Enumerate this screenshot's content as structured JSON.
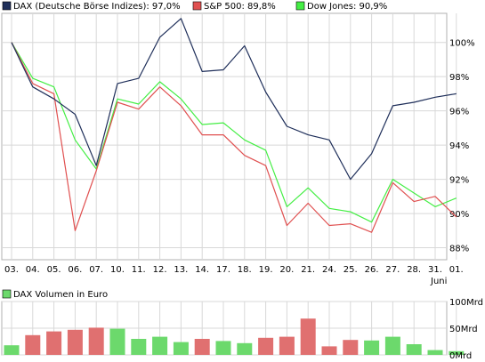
{
  "legend": {
    "dax": {
      "label": "DAX (Deutsche Börse Indizes): 97,0%",
      "color": "#1f2f5a"
    },
    "sp500": {
      "label": "S&P 500: 89,8%",
      "color": "#e05050"
    },
    "dow": {
      "label": "Dow Jones: 90,9%",
      "color": "#44ee44"
    }
  },
  "volume_legend": {
    "label": "DAX Volumen in Euro",
    "color": "#6cd96c"
  },
  "chart_data": [
    {
      "type": "line",
      "categories": [
        "03.",
        "04.",
        "05.",
        "06.",
        "07.",
        "10.",
        "11.",
        "12.",
        "13.",
        "14.",
        "17.",
        "18.",
        "19.",
        "20.",
        "21.",
        "24.",
        "25.",
        "26.",
        "27.",
        "28.",
        "31.",
        "01."
      ],
      "month_label": "Juni",
      "y_ticks": [
        "88%",
        "90%",
        "92%",
        "94%",
        "96%",
        "98%",
        "100%"
      ],
      "ylim": [
        87.3,
        101.7
      ],
      "grid": true,
      "series": [
        {
          "name": "DAX (Deutsche Börse Indizes): 97,0%",
          "color": "#1f2f5a",
          "values": [
            100.0,
            97.4,
            96.7,
            95.8,
            92.8,
            97.6,
            97.9,
            100.3,
            101.4,
            98.3,
            98.4,
            99.8,
            97.1,
            95.1,
            94.6,
            94.3,
            92.0,
            93.5,
            96.3,
            96.5,
            96.8,
            97.0
          ]
        },
        {
          "name": "S&P 500: 89,8%",
          "color": "#e05050",
          "values": [
            100.0,
            97.6,
            97.0,
            89.0,
            92.5,
            96.5,
            96.1,
            97.4,
            96.3,
            94.6,
            94.6,
            93.4,
            92.8,
            89.3,
            90.6,
            89.3,
            89.4,
            88.9,
            91.8,
            90.7,
            91.0,
            89.8
          ]
        },
        {
          "name": "Dow Jones: 90,9%",
          "color": "#44ee44",
          "values": [
            100.0,
            97.9,
            97.4,
            94.3,
            92.6,
            96.7,
            96.4,
            97.7,
            96.7,
            95.2,
            95.3,
            94.3,
            93.7,
            90.4,
            91.5,
            90.3,
            90.1,
            89.5,
            92.0,
            91.2,
            90.4,
            90.9
          ]
        }
      ]
    },
    {
      "type": "bar",
      "title": "DAX Volumen in Euro",
      "y_ticks": [
        "0Mrd",
        "50Mrd",
        "100Mrd"
      ],
      "ylim": [
        0,
        100
      ],
      "grid": true,
      "bars": [
        {
          "value": 18,
          "color": "#6cd96c"
        },
        {
          "value": 37,
          "color": "#e07070"
        },
        {
          "value": 44,
          "color": "#e07070"
        },
        {
          "value": 47,
          "color": "#e07070"
        },
        {
          "value": 51,
          "color": "#e07070"
        },
        {
          "value": 49,
          "color": "#6cd96c"
        },
        {
          "value": 30,
          "color": "#6cd96c"
        },
        {
          "value": 34,
          "color": "#6cd96c"
        },
        {
          "value": 24,
          "color": "#6cd96c"
        },
        {
          "value": 30,
          "color": "#e07070"
        },
        {
          "value": 26,
          "color": "#6cd96c"
        },
        {
          "value": 22,
          "color": "#6cd96c"
        },
        {
          "value": 32,
          "color": "#e07070"
        },
        {
          "value": 34,
          "color": "#e07070"
        },
        {
          "value": 68,
          "color": "#e07070"
        },
        {
          "value": 16,
          "color": "#e07070"
        },
        {
          "value": 28,
          "color": "#e07070"
        },
        {
          "value": 27,
          "color": "#6cd96c"
        },
        {
          "value": 34,
          "color": "#6cd96c"
        },
        {
          "value": 20,
          "color": "#6cd96c"
        },
        {
          "value": 9,
          "color": "#6cd96c"
        },
        {
          "value": 7,
          "color": "#6cd96c"
        }
      ]
    }
  ]
}
